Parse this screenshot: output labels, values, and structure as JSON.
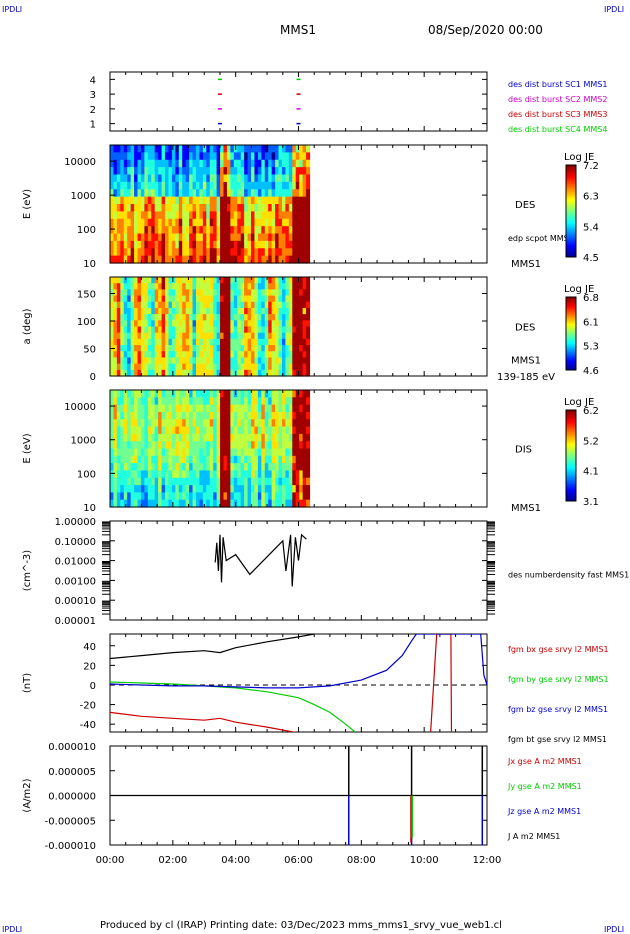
{
  "header": {
    "corner_tl": "IPDLI",
    "corner_tr": "IPDLI",
    "corner_bl": "IPDLI",
    "corner_br": "IPDLI",
    "spacecraft": "MMS1",
    "datetime": "08/Sep/2020 00:00"
  },
  "footer": {
    "text": "Produced by cl (IRAP)   Printing date: 03/Dec/2023   mms_mms1_srvy_vue_web1.cl"
  },
  "colors": {
    "blue": "#0000cc",
    "magenta": "#cc00cc",
    "red": "#cc0000",
    "green": "#00cc00",
    "black": "#000000"
  },
  "chart_data": [
    {
      "type": "scatter",
      "panel": "availability",
      "yticks": [
        "4",
        "3",
        "2",
        "1"
      ],
      "ylim": [
        0.5,
        4.5
      ],
      "legend": [
        {
          "name": "des dist burst SC1 MMS1",
          "color": "#0000cc"
        },
        {
          "name": "des dist burst SC2 MMS2",
          "color": "#cc00cc"
        },
        {
          "name": "des dist burst SC3 MMS3",
          "color": "#cc0000"
        },
        {
          "name": "des dist burst SC4 MMS4",
          "color": "#00cc00"
        }
      ],
      "series": [
        {
          "name": "SC1",
          "y": 1,
          "x": [
            3.5,
            6.0
          ]
        },
        {
          "name": "SC2",
          "y": 2,
          "x": [
            3.5,
            6.0
          ]
        },
        {
          "name": "SC3",
          "y": 3,
          "x": [
            3.5,
            6.0
          ]
        },
        {
          "name": "SC4",
          "y": 4,
          "x": [
            3.5,
            6.0
          ]
        }
      ]
    },
    {
      "type": "heatmap",
      "panel": "des-energy",
      "ylabel": "E (eV)",
      "yticks": [
        "10000",
        "1000",
        "100",
        "10"
      ],
      "yscale": "log",
      "ylim": [
        10,
        30000
      ],
      "data_end_hour": 6.35,
      "instrument": "DES",
      "below_label": "MMS1",
      "overlay_label": "edp scpot MMS1",
      "colorbar": {
        "title": "Log JE",
        "ticks": [
          "7.2",
          "6.3",
          "5.4",
          "4.5"
        ],
        "range": [
          4.5,
          7.2
        ]
      }
    },
    {
      "type": "heatmap",
      "panel": "des-pitch",
      "ylabel": "a (deg)",
      "yticks": [
        "150",
        "100",
        "50",
        "0"
      ],
      "ylim": [
        0,
        180
      ],
      "data_end_hour": 6.35,
      "instrument": "DES",
      "side_label": "MMS1",
      "below_label": "139-185 eV",
      "colorbar": {
        "title": "Log JE",
        "ticks": [
          "6.8",
          "6.1",
          "5.3",
          "4.6"
        ],
        "range": [
          4.6,
          6.8
        ]
      }
    },
    {
      "type": "heatmap",
      "panel": "dis-energy",
      "ylabel": "E (eV)",
      "yticks": [
        "10000",
        "1000",
        "100",
        "10"
      ],
      "yscale": "log",
      "ylim": [
        10,
        30000
      ],
      "data_end_hour": 6.35,
      "instrument": "DIS",
      "below_label": "MMS1",
      "colorbar": {
        "title": "Log JE",
        "ticks": [
          "6.2",
          "5.2",
          "4.1",
          "3.1"
        ],
        "range": [
          3.1,
          6.2
        ]
      }
    },
    {
      "type": "line",
      "panel": "density",
      "ylabel": "(cm^-3)",
      "yscale": "log",
      "yticks": [
        "1.00000",
        "0.10000",
        "0.01000",
        "0.00100",
        "0.00010",
        "0.00001"
      ],
      "ylim": [
        1e-05,
        1.0
      ],
      "series": [
        {
          "name": "des numberdensity fast MMS1",
          "color": "#000000",
          "x": [
            3.35,
            3.4,
            3.45,
            3.5,
            3.55,
            3.6,
            3.7,
            4.0,
            4.45,
            5.5,
            5.6,
            5.75,
            5.8,
            5.9,
            6.0,
            6.1,
            6.25
          ],
          "y": [
            0.008,
            0.08,
            0.003,
            0.2,
            0.0008,
            0.15,
            0.01,
            0.02,
            0.002,
            0.1,
            0.003,
            0.2,
            0.0005,
            0.15,
            0.01,
            0.2,
            0.12
          ]
        }
      ]
    },
    {
      "type": "line",
      "panel": "magnetic-field",
      "ylabel": "(nT)",
      "yticks": [
        "40",
        "20",
        "0",
        "-20",
        "-40"
      ],
      "ylim": [
        -48,
        52
      ],
      "series": [
        {
          "name": "fgm bx gse srvy l2 MMS1",
          "color": "#cc0000",
          "x": [
            0,
            1,
            2,
            3,
            3.5,
            4,
            5,
            6.5,
            10.2,
            10.4,
            10.85,
            10.87,
            10.9
          ],
          "y": [
            -28,
            -32,
            -34,
            -36,
            -34,
            -38,
            -43,
            -52,
            -52,
            52,
            52,
            -52,
            -52
          ]
        },
        {
          "name": "fgm by gse srvy l2 MMS1",
          "color": "#00cc00",
          "x": [
            0,
            1,
            2,
            3,
            4,
            5,
            6,
            6.5,
            7,
            7.5,
            7.8
          ],
          "y": [
            3,
            2,
            1,
            -1,
            -3,
            -7,
            -13,
            -20,
            -28,
            -40,
            -48
          ]
        },
        {
          "name": "fgm bz gse srvy l2 MMS1",
          "color": "#0000cc",
          "x": [
            0,
            1,
            2,
            3,
            4,
            5,
            6,
            7,
            8,
            8.8,
            9.3,
            9.6,
            9.75,
            11.8,
            11.9,
            12
          ],
          "y": [
            1,
            0,
            -1,
            -1,
            -2,
            -3,
            -3,
            -1,
            5,
            15,
            30,
            45,
            52,
            52,
            10,
            0
          ]
        },
        {
          "name": "fgm bt gse srvy l2 MMS1",
          "color": "#000000",
          "x": [
            0,
            1,
            2,
            3,
            3.5,
            4,
            5,
            6,
            6.5
          ],
          "y": [
            27,
            30,
            33,
            35,
            33,
            38,
            44,
            49,
            52
          ]
        }
      ],
      "reference_line": 0
    },
    {
      "type": "line",
      "panel": "current-density",
      "ylabel": "(A/m2)",
      "yticks": [
        "0.000010",
        "0.000005",
        "0.000000",
        "-0.000005",
        "-0.000010"
      ],
      "ylim": [
        -1e-05,
        1e-05
      ],
      "xlabels": [
        "00:00",
        "02:00",
        "04:00",
        "06:00",
        "08:00",
        "10:00",
        "12:00"
      ],
      "xlim": [
        0,
        12
      ],
      "series": [
        {
          "name": "Jx gse A m2 MMS1",
          "color": "#cc0000"
        },
        {
          "name": "Jy gse A m2 MMS1",
          "color": "#00cc00"
        },
        {
          "name": "Jz gse A m2 MMS1",
          "color": "#0000cc"
        },
        {
          "name": "J A m2 MMS1",
          "color": "#000000"
        }
      ],
      "spikes": [
        {
          "x": 7.6,
          "y": 1e-05,
          "color": "#000000"
        },
        {
          "x": 7.6,
          "y": -1e-05,
          "color": "#0000cc"
        },
        {
          "x": 9.6,
          "y": 1e-05,
          "color": "#000000"
        },
        {
          "x": 9.6,
          "y": -1e-05,
          "color": "#0000cc"
        },
        {
          "x": 9.58,
          "y": -9.5e-06,
          "color": "#cc0000"
        },
        {
          "x": 9.62,
          "y": -8.5e-06,
          "color": "#00cc00"
        },
        {
          "x": 11.85,
          "y": 1e-05,
          "color": "#000000"
        },
        {
          "x": 11.85,
          "y": -1e-05,
          "color": "#0000cc"
        }
      ]
    }
  ]
}
